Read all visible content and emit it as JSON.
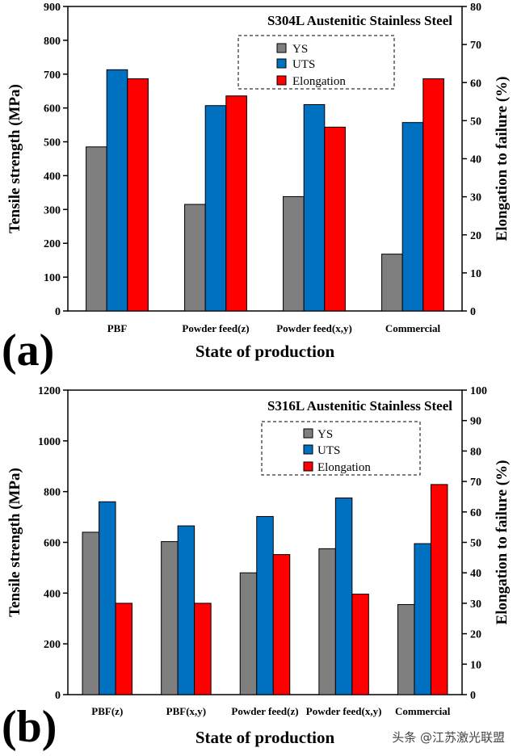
{
  "watermark": "头条 @江苏激光联盟",
  "chart_data": [
    {
      "type": "bar",
      "panel_label": "(a)",
      "title": "S304L Austenitic Stainless Steel",
      "xlabel": "State of production",
      "ylabel": "Tensile strength (MPa)",
      "y2label": "Elongation to failure (%)",
      "ylim": [
        0,
        900
      ],
      "y_ticks": [
        0,
        100,
        200,
        300,
        400,
        500,
        600,
        700,
        800,
        900
      ],
      "y2lim": [
        0,
        80
      ],
      "y2_ticks": [
        0,
        10,
        20,
        30,
        40,
        50,
        60,
        70,
        80
      ],
      "categories": [
        "PBF",
        "Powder feed(z)",
        "Powder feed(x,y)",
        "Commercial"
      ],
      "legend_position": "top-right",
      "series": [
        {
          "name": "YS",
          "axis": "left",
          "color": "#7f7f7f",
          "values": [
            485,
            315,
            338,
            168
          ]
        },
        {
          "name": "UTS",
          "axis": "left",
          "color": "#0070c0",
          "values": [
            713,
            607,
            610,
            557
          ]
        },
        {
          "name": "Elongation",
          "axis": "right",
          "color": "#ff0000",
          "values": [
            61,
            56.5,
            48.3,
            61
          ]
        }
      ]
    },
    {
      "type": "bar",
      "panel_label": "(b)",
      "title": "S316L Austenitic Stainless Steel",
      "xlabel": "State of production",
      "ylabel": "Tensile strength (MPa)",
      "y2label": "Elongation to failure (%)",
      "ylim": [
        0,
        1200
      ],
      "y_ticks": [
        0,
        200,
        400,
        600,
        800,
        1000,
        1200
      ],
      "y2lim": [
        0,
        100
      ],
      "y2_ticks": [
        0,
        10,
        20,
        30,
        40,
        50,
        60,
        70,
        80,
        90,
        100
      ],
      "categories": [
        "PBF(z)",
        "PBF(x,y)",
        "Powder feed(z)",
        "Powder feed(x,y)",
        "Commercial"
      ],
      "legend_position": "top-right",
      "series": [
        {
          "name": "YS",
          "axis": "left",
          "color": "#7f7f7f",
          "values": [
            640,
            603,
            480,
            575,
            355
          ]
        },
        {
          "name": "UTS",
          "axis": "left",
          "color": "#0070c0",
          "values": [
            760,
            665,
            702,
            775,
            595
          ]
        },
        {
          "name": "Elongation",
          "axis": "right",
          "color": "#ff0000",
          "values": [
            30,
            30,
            46,
            33,
            69
          ]
        }
      ]
    }
  ]
}
